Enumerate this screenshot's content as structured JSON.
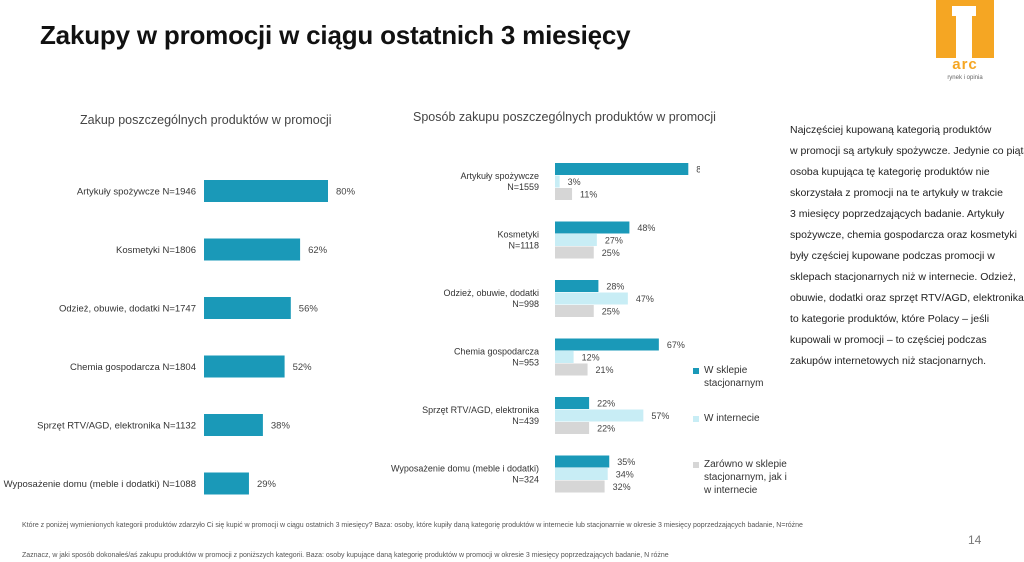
{
  "title": "Zakupy w promocji w ciągu ostatnich 3 miesięcy",
  "logo": {
    "text": "arc",
    "subtext": "rynek i opinia"
  },
  "colors": {
    "teal": "#1a99b8",
    "light": "#c8edf5",
    "grey": "#d6d6d6"
  },
  "chart_data": [
    {
      "type": "bar",
      "title": "Zakup poszczególnych produktów w promocji",
      "categories": [
        "Artykuły spożywcze N=1946",
        "Kosmetyki N=1806",
        "Odzież, obuwie, dodatki N=1747",
        "Chemia gospodarcza N=1804",
        "Sprzęt RTV/AGD, elektronika N=1132",
        "Wyposażenie domu (meble i dodatki) N=1088"
      ],
      "values": [
        80,
        62,
        56,
        52,
        38,
        29
      ],
      "labels": [
        "80%",
        "62%",
        "56%",
        "52%",
        "38%",
        "29%"
      ],
      "xlim": [
        0,
        100
      ]
    },
    {
      "type": "bar",
      "title": "Sposób zakupu poszczególnych produktów w promocji",
      "categories": [
        {
          "name": "Artykuły spożywcze",
          "n": "N=1559"
        },
        {
          "name": "Kosmetyki",
          "n": "N=1118"
        },
        {
          "name": "Odzież, obuwie, dodatki",
          "n": "N=998"
        },
        {
          "name": "Chemia gospodarcza",
          "n": "N=953"
        },
        {
          "name": "Sprzęt RTV/AGD, elektronika",
          "n": "N=439"
        },
        {
          "name": "Wyposażenie domu (meble i dodatki)",
          "n": "N=324"
        }
      ],
      "series": [
        {
          "name": "W sklepie stacjonarnym",
          "values": [
            86,
            48,
            28,
            67,
            22,
            35
          ]
        },
        {
          "name": "W internecie",
          "values": [
            3,
            27,
            47,
            12,
            57,
            34
          ]
        },
        {
          "name": "Zarówno w sklepie stacjonarnym, jak i w internecie",
          "values": [
            11,
            25,
            25,
            21,
            22,
            32
          ]
        }
      ],
      "xlim": [
        0,
        100
      ]
    }
  ],
  "legend": [
    {
      "lines": [
        "W sklepie",
        "stacjonarnym"
      ]
    },
    {
      "lines": [
        "W internecie"
      ]
    },
    {
      "lines": [
        "Zarówno w sklepie",
        "stacjonarnym, jak i",
        "w internecie"
      ]
    }
  ],
  "description": [
    "Najczęściej kupowaną kategorią produktów",
    "w promocji są artykuły spożywcze. Jedynie co piąta",
    "osoba kupująca tę kategorię produktów nie",
    "skorzystała z promocji na te artykuły w trakcie",
    "3 miesięcy poprzedzających badanie. Artykuły",
    "spożywcze, chemia gospodarcza oraz kosmetyki",
    "były częściej kupowane podczas promocji w",
    "sklepach stacjonarnych niż w internecie. Odzież,",
    "obuwie, dodatki oraz sprzęt RTV/AGD, elektronika,",
    "to kategorie produktów, które Polacy – jeśli",
    "kupowali w promocji – to częściej podczas",
    "zakupów internetowych niż stacjonarnych."
  ],
  "footnotes": [
    "Które z poniżej wymienionych kategorii produktów zdarzyło Ci się kupić w promocji w ciągu ostatnich 3 miesięcy? Baza: osoby, które kupiły daną kategorię produktów w internecie lub stacjonarnie w okresie 3 miesięcy poprzedzających badanie, N=różne",
    "Zaznacz, w jaki sposób dokonałeś/aś zakupu produktów w promocji z poniższych kategorii. Baza: osoby kupujące daną kategorię produktów w promocji w okresie 3 miesięcy poprzedzających badanie, N różne"
  ],
  "page_number": "14"
}
